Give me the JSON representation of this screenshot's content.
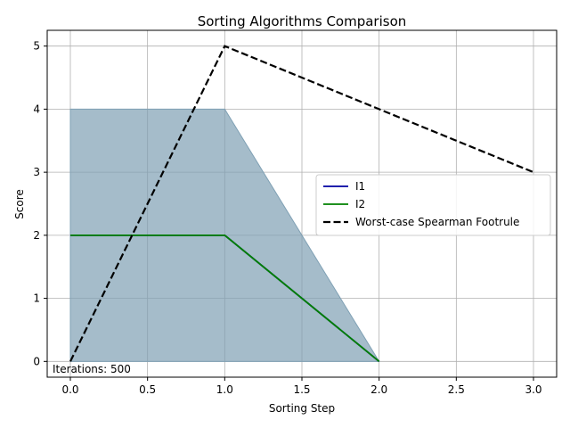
{
  "chart_data": {
    "type": "line",
    "title": "Sorting Algorithms Comparison",
    "xlabel": "Sorting Step",
    "ylabel": "Score",
    "xlim": [
      -0.15,
      3.15
    ],
    "ylim": [
      -0.25,
      5.25
    ],
    "x_ticks": [
      0.0,
      0.5,
      1.0,
      1.5,
      2.0,
      2.5,
      3.0
    ],
    "x_tick_labels": [
      "0.0",
      "0.5",
      "1.0",
      "1.5",
      "2.0",
      "2.5",
      "3.0"
    ],
    "y_ticks": [
      0,
      1,
      2,
      3,
      4,
      5
    ],
    "y_tick_labels": [
      "0",
      "1",
      "2",
      "3",
      "4",
      "5"
    ],
    "grid": true,
    "legend_position": "center-right",
    "series": [
      {
        "name": "I1",
        "x": [
          0,
          1,
          2
        ],
        "y": [
          2,
          2,
          0
        ],
        "color": "#0000a0",
        "style": "solid"
      },
      {
        "name": "I2",
        "x": [
          0,
          1,
          2
        ],
        "y": [
          2,
          2,
          0
        ],
        "color": "#008000",
        "style": "solid"
      },
      {
        "name": "Worst-case Spearman Footrule",
        "x": [
          0,
          1,
          2,
          3
        ],
        "y": [
          0,
          5,
          4,
          3
        ],
        "color": "#000000",
        "style": "dashed"
      }
    ],
    "fill_band": {
      "x": [
        0,
        1,
        2
      ],
      "lower": [
        0,
        0,
        0
      ],
      "upper": [
        4,
        4,
        0
      ],
      "color": "#7fa0b4"
    },
    "annotation": "Iterations: 500"
  }
}
